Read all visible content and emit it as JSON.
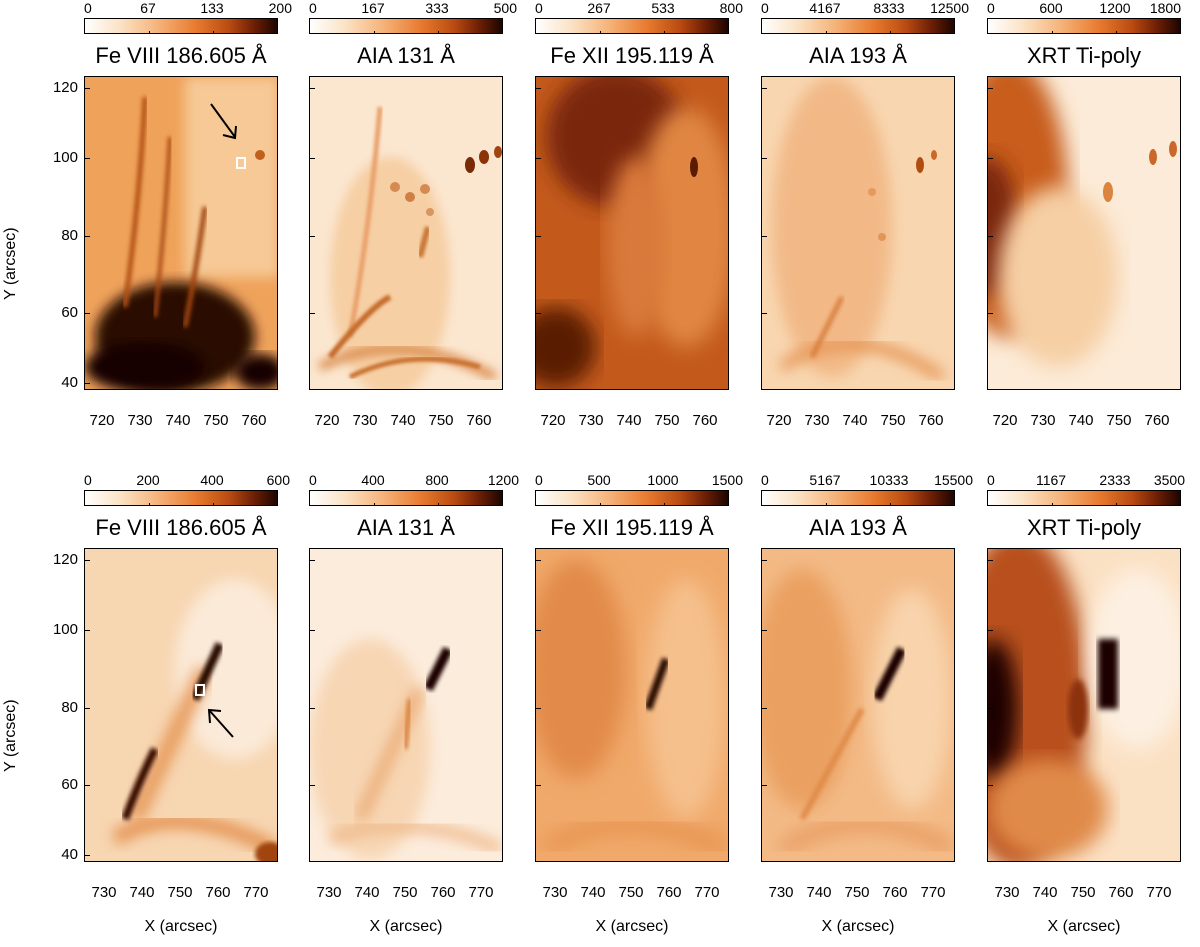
{
  "rows": [
    {
      "panels": [
        {
          "title": "Fe VIII 186.605 Å",
          "cbar": [
            "0",
            "67",
            "133",
            "200"
          ]
        },
        {
          "title": "AIA 131 Å",
          "cbar": [
            "0",
            "167",
            "333",
            "500"
          ]
        },
        {
          "title": "Fe XII 195.119 Å",
          "cbar": [
            "0",
            "267",
            "533",
            "800"
          ]
        },
        {
          "title": "AIA 193 Å",
          "cbar": [
            "0",
            "4167",
            "8333",
            "12500"
          ]
        },
        {
          "title": "XRT Ti-poly",
          "cbar": [
            "0",
            "600",
            "1200",
            "1800"
          ]
        }
      ],
      "y_ticks": [
        "120",
        "100",
        "80",
        "60",
        "40"
      ],
      "x_ticks": [
        "720",
        "730",
        "740",
        "750",
        "760"
      ],
      "y_axis_title": "Y (arcsec)",
      "x_axis_title": ""
    },
    {
      "panels": [
        {
          "title": "Fe VIII 186.605 Å",
          "cbar": [
            "0",
            "200",
            "400",
            "600"
          ]
        },
        {
          "title": "AIA 131 Å",
          "cbar": [
            "0",
            "400",
            "800",
            "1200"
          ]
        },
        {
          "title": "Fe XII 195.119 Å",
          "cbar": [
            "0",
            "500",
            "1000",
            "1500"
          ]
        },
        {
          "title": "AIA 193 Å",
          "cbar": [
            "0",
            "5167",
            "10333",
            "15500"
          ]
        },
        {
          "title": "XRT Ti-poly",
          "cbar": [
            "0",
            "1167",
            "2333",
            "3500"
          ]
        }
      ],
      "y_ticks": [
        "120",
        "100",
        "80",
        "60",
        "40"
      ],
      "x_ticks": [
        "730",
        "740",
        "750",
        "760",
        "770"
      ],
      "y_axis_title": "Y (arcsec)",
      "x_axis_title": "X (arcsec)"
    }
  ],
  "colors": {
    "low": "#ffffff",
    "mid": "#e87a2e",
    "high": "#1e0500",
    "marker": "#ffffff",
    "arrow": "#000000"
  }
}
